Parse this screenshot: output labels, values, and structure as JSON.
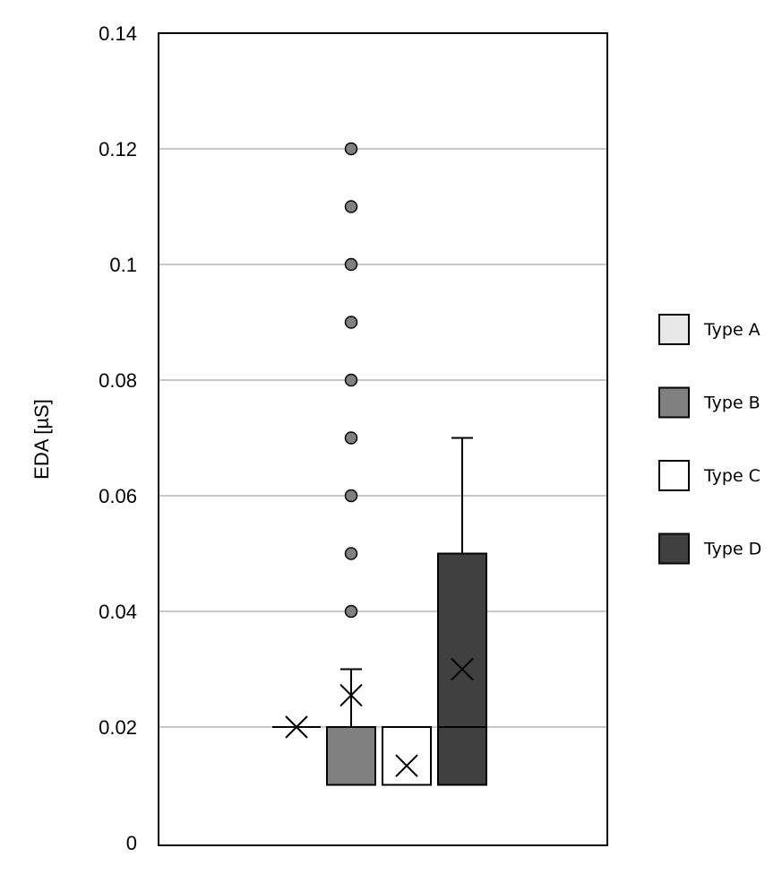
{
  "chart_data": {
    "type": "box",
    "ylabel": "EDA [µS]",
    "ylim": [
      0,
      0.14
    ],
    "yticks": [
      0,
      0.02,
      0.04,
      0.06,
      0.08,
      0.1,
      0.12,
      0.14
    ],
    "ytick_labels": [
      "0",
      "0.02",
      "0.04",
      "0.06",
      "0.08",
      "0.1",
      "0.12",
      "0.14"
    ],
    "grid": true,
    "legend_position": "right",
    "series": [
      {
        "name": "Type A",
        "color": "#e8e8e8",
        "min": 0.02,
        "q1": 0.02,
        "median": 0.02,
        "q3": 0.02,
        "max": 0.02,
        "mean": 0.02,
        "outliers": []
      },
      {
        "name": "Type B",
        "color": "#808080",
        "min": 0.01,
        "q1": 0.01,
        "median": 0.02,
        "q3": 0.02,
        "max": 0.03,
        "mean": 0.0255,
        "outliers": [
          0.04,
          0.05,
          0.06,
          0.07,
          0.08,
          0.09,
          0.1,
          0.11,
          0.12
        ]
      },
      {
        "name": "Type C",
        "color": "#ffffff",
        "min": 0.01,
        "q1": 0.01,
        "median": 0.01,
        "q3": 0.02,
        "max": 0.02,
        "mean": 0.0133,
        "outliers": []
      },
      {
        "name": "Type D",
        "color": "#404040",
        "min": 0.01,
        "q1": 0.01,
        "median": 0.02,
        "q3": 0.05,
        "max": 0.07,
        "mean": 0.03,
        "outliers": []
      }
    ]
  }
}
